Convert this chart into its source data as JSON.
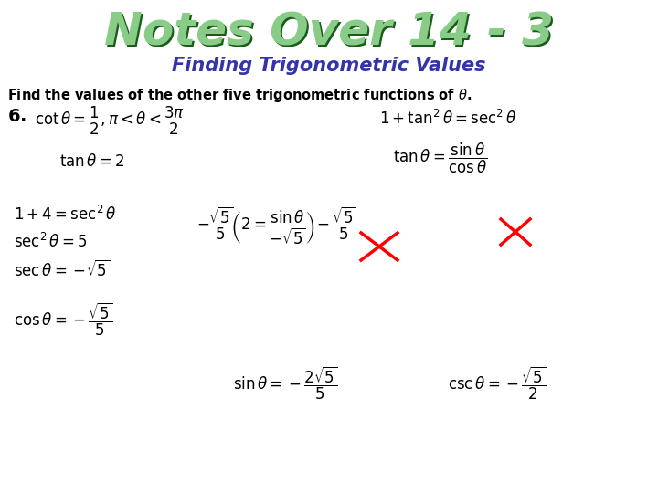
{
  "title_main": "Notes Over 14 - 3",
  "title_sub": "Finding Trigonometric Values",
  "subtitle_color": "#3333aa",
  "body_color": "#000000",
  "bg_color": "#ffffff",
  "title_color_dark": "#1a5c1a",
  "title_color_light": "#66bb66"
}
